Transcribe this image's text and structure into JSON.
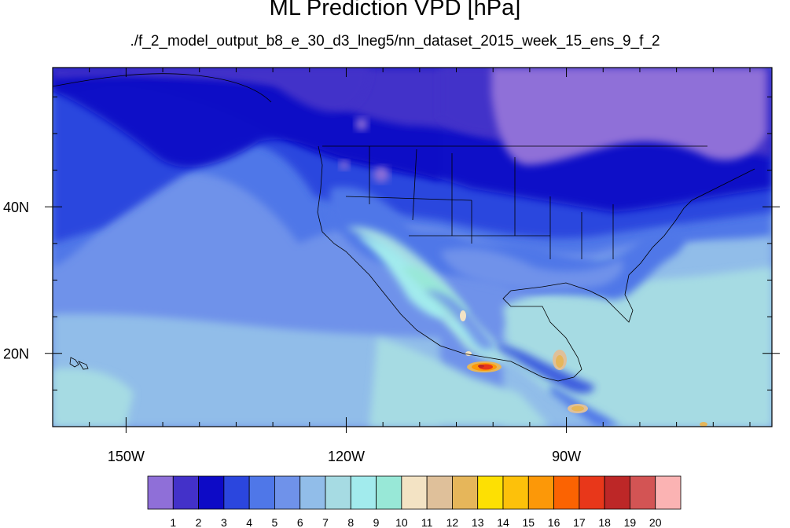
{
  "title": "ML Prediction VPD [hPa]",
  "subtitle": "./f_2_model_output_b8_e_30_d3_lneg5/nn_dataset_2015_week_15_ens_9_f_2",
  "map": {
    "lon_range": [
      -160,
      -62
    ],
    "lat_range": [
      10,
      59
    ],
    "lon_ticks": [
      {
        "lon": -150,
        "label": "150W"
      },
      {
        "lon": -120,
        "label": "120W"
      },
      {
        "lon": -90,
        "label": "90W"
      }
    ],
    "lat_ticks": [
      {
        "lat": 40,
        "label": "40N"
      },
      {
        "lat": 20,
        "label": "20N"
      }
    ]
  },
  "colorbar": {
    "colors": [
      "#8f6fd8",
      "#4331c9",
      "#0d0ac6",
      "#2b46de",
      "#4f77e8",
      "#6f92ea",
      "#91bde9",
      "#a6dbe3",
      "#a2ebed",
      "#98e8d7",
      "#f3e3c4",
      "#dfc09a",
      "#e6b65a",
      "#fde003",
      "#fdc10a",
      "#fc9808",
      "#fb6302",
      "#e8371a",
      "#bd2727",
      "#d35454",
      "#fbb3b3"
    ],
    "labels": [
      "1",
      "2",
      "3",
      "4",
      "5",
      "6",
      "7",
      "8",
      "9",
      "10",
      "11",
      "12",
      "13",
      "14",
      "15",
      "16",
      "17",
      "18",
      "19",
      "20"
    ]
  }
}
